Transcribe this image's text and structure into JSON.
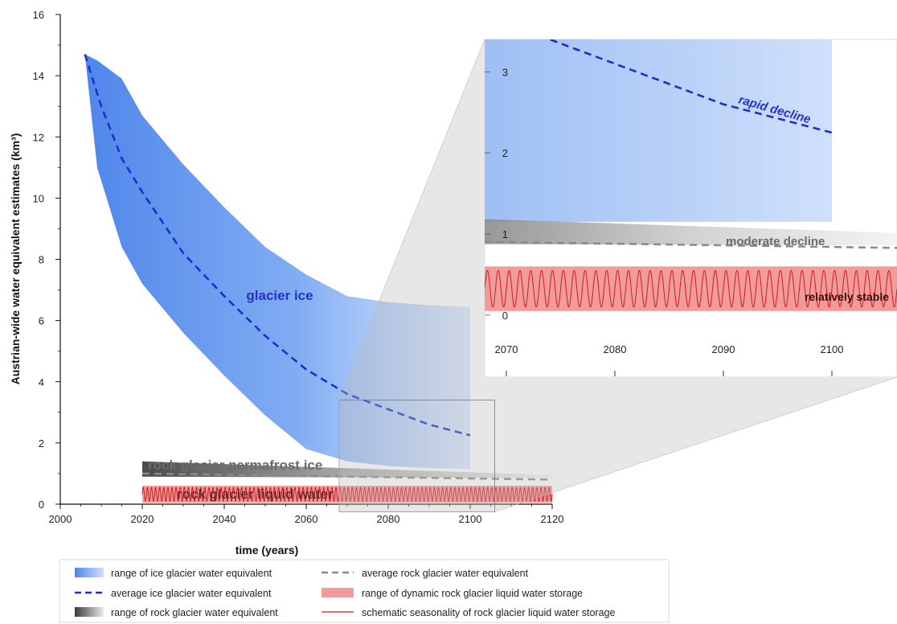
{
  "chart_data": {
    "type": "area",
    "ylabel": "Austrian-wide water equivalent estimates (km³)",
    "xlabel": "time (years)",
    "xlim": [
      2000,
      2120
    ],
    "ylim": [
      0,
      16
    ],
    "xticks": [
      2000,
      2020,
      2040,
      2060,
      2080,
      2100,
      2120
    ],
    "yticks": [
      0,
      2,
      4,
      6,
      8,
      10,
      12,
      14,
      16
    ],
    "series": {
      "ice_range": {
        "x": [
          2006,
          2009,
          2015,
          2020,
          2030,
          2040,
          2050,
          2060,
          2070,
          2080,
          2090,
          2100
        ],
        "upper": [
          14.7,
          14.5,
          13.9,
          12.7,
          11.1,
          9.7,
          8.4,
          7.5,
          6.8,
          6.6,
          6.5,
          6.45
        ],
        "lower": [
          14.7,
          11.0,
          8.4,
          7.2,
          5.6,
          4.2,
          2.9,
          1.8,
          1.4,
          1.25,
          1.18,
          1.15
        ]
      },
      "ice_average": {
        "x": [
          2006,
          2010,
          2015,
          2020,
          2030,
          2040,
          2050,
          2060,
          2070,
          2080,
          2090,
          2100
        ],
        "y": [
          14.7,
          13.0,
          11.3,
          10.2,
          8.2,
          6.8,
          5.5,
          4.4,
          3.6,
          3.1,
          2.6,
          2.25
        ]
      },
      "rock_range": {
        "x": [
          2020,
          2120
        ],
        "upper": [
          1.4,
          0.95
        ],
        "lower": [
          0.9,
          0.85
        ]
      },
      "rock_average": {
        "x": [
          2020,
          2120
        ],
        "y": [
          1.0,
          0.8
        ]
      },
      "liquid_range": {
        "x": [
          2020,
          2120
        ],
        "upper": [
          0.6,
          0.6
        ],
        "lower": [
          0.05,
          0.05
        ]
      },
      "liquid_seasonality": {
        "x_start": 2020,
        "x_end": 2120,
        "cycles": 100,
        "min": 0.1,
        "max": 0.55
      }
    },
    "inset": {
      "xlim": [
        2068,
        2106
      ],
      "ylim": [
        -0.25,
        3.4
      ],
      "xticks": [
        2070,
        2080,
        2090,
        2100
      ],
      "yticks": [
        0,
        1,
        2,
        3
      ],
      "cycles": 38
    },
    "annotations": {
      "glacier_ice": "glacier ice",
      "rock_permafrost": "rock glacier permafrost ice",
      "rock_liquid": "rock glacier liquid water",
      "rapid_decline": "rapid decline",
      "moderate_decline": "moderate decline",
      "relatively_stable": "relatively stable"
    },
    "legend": [
      "range of ice glacier water equivalent",
      "average ice glacier water equivalent",
      "range of rock glacier water equivalent",
      "average rock glacier water equivalent",
      "range of dynamic rock glacier liquid water storage",
      "schematic seasonality of rock glacier liquid water storage"
    ],
    "colors": {
      "ice_fill": "#5b93ee",
      "ice_line": "#1f2fcf",
      "rock_fill": "#6e6e6e",
      "rock_line": "#8a8a8a",
      "liquid_fill": "#f08a8a",
      "liquid_line": "#d81818",
      "annotation_blue": "#2433c8",
      "annotation_gray": "#6b6b6b"
    }
  }
}
